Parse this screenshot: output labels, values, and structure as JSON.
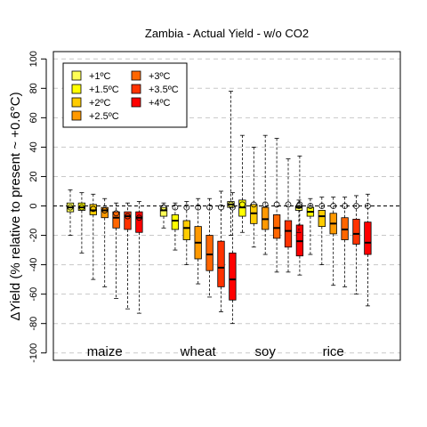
{
  "chart_data": {
    "type": "boxplot",
    "title": "Zambia - Actual Yield - w/o CO2",
    "ylabel": "ΔYield (% relative to present ~ +0.6°C)",
    "xlabel": "",
    "ylim": [
      -105,
      105
    ],
    "yticks": [
      -100,
      -80,
      -60,
      -40,
      -20,
      0,
      20,
      40,
      60,
      80,
      100
    ],
    "grid": true,
    "legend_position": "top-left",
    "series": [
      {
        "name": "+1ºC",
        "color": "#FFFF55"
      },
      {
        "name": "+1.5ºC",
        "color": "#FFFF00"
      },
      {
        "name": "+2ºC",
        "color": "#FFCC00"
      },
      {
        "name": "+2.5ºC",
        "color": "#FF9900"
      },
      {
        "name": "+3ºC",
        "color": "#FF6600"
      },
      {
        "name": "+3.5ºC",
        "color": "#FF3300"
      },
      {
        "name": "+4ºC",
        "color": "#FF0000"
      }
    ],
    "groups": [
      {
        "label": "maize",
        "boxes": [
          {
            "min": -20,
            "q1": -4,
            "median": -1,
            "q3": 2,
            "max": 11,
            "mean": -1
          },
          {
            "min": -32,
            "q1": -3,
            "median": -1,
            "q3": 2,
            "max": 9,
            "mean": -1
          },
          {
            "min": -50,
            "q1": -6,
            "median": -3,
            "q3": 1,
            "max": 8,
            "mean": -2
          },
          {
            "min": -55,
            "q1": -8,
            "median": -3,
            "q3": -1,
            "max": 5,
            "mean": -3
          },
          {
            "min": -63,
            "q1": -15,
            "median": -8,
            "q3": -4,
            "max": 2,
            "mean": -5
          },
          {
            "min": -70,
            "q1": -16,
            "median": -7,
            "q3": -4,
            "max": 2,
            "mean": -7
          },
          {
            "min": -73,
            "q1": -18,
            "median": -8,
            "q3": -4,
            "max": 3,
            "mean": -8
          }
        ]
      },
      {
        "label": "wheat",
        "boxes": [
          {
            "min": -15,
            "q1": -7,
            "median": -3,
            "q3": -1,
            "max": 2,
            "mean": -1
          },
          {
            "min": -30,
            "q1": -16,
            "median": -10,
            "q3": -6,
            "max": 2,
            "mean": -1
          },
          {
            "min": -40,
            "q1": -23,
            "median": -15,
            "q3": -10,
            "max": 3,
            "mean": -1
          },
          {
            "min": -53,
            "q1": -36,
            "median": -25,
            "q3": -14,
            "max": 5,
            "mean": -1
          },
          {
            "min": -62,
            "q1": -44,
            "median": -33,
            "q3": -20,
            "max": 5,
            "mean": -1
          },
          {
            "min": -72,
            "q1": -55,
            "median": -42,
            "q3": -24,
            "max": 10,
            "mean": -1
          },
          {
            "min": -80,
            "q1": -64,
            "median": -50,
            "q3": -32,
            "max": 9,
            "mean": -1
          }
        ]
      },
      {
        "label": "soy",
        "boxes": [
          {
            "min": -20,
            "q1": -1,
            "median": 1,
            "q3": 3,
            "max": 78,
            "mean": 1
          },
          {
            "min": -18,
            "q1": -7,
            "median": -1,
            "q3": 4,
            "max": 48,
            "mean": 1
          },
          {
            "min": -28,
            "q1": -12,
            "median": -5,
            "q3": 1,
            "max": 40,
            "mean": 1
          },
          {
            "min": -33,
            "q1": -16,
            "median": -9,
            "q3": -1,
            "max": 48,
            "mean": 1
          },
          {
            "min": -45,
            "q1": -22,
            "median": -15,
            "q3": -6,
            "max": 46,
            "mean": 1
          },
          {
            "min": -45,
            "q1": -28,
            "median": -17,
            "q3": -10,
            "max": 32,
            "mean": 1
          },
          {
            "min": -47,
            "q1": -34,
            "median": -24,
            "q3": -13,
            "max": 34,
            "mean": 1
          }
        ]
      },
      {
        "label": "rice",
        "boxes": [
          {
            "min": -18,
            "q1": -3,
            "median": -1,
            "q3": 0,
            "max": 4,
            "mean": 0
          },
          {
            "min": -33,
            "q1": -7,
            "median": -4,
            "q3": -1,
            "max": 5,
            "mean": 0
          },
          {
            "min": -40,
            "q1": -14,
            "median": -7,
            "q3": -3,
            "max": 6,
            "mean": 0
          },
          {
            "min": -54,
            "q1": -19,
            "median": -12,
            "q3": -5,
            "max": 6,
            "mean": 0
          },
          {
            "min": -55,
            "q1": -23,
            "median": -16,
            "q3": -8,
            "max": 6,
            "mean": 0
          },
          {
            "min": -60,
            "q1": -26,
            "median": -19,
            "q3": -9,
            "max": 7,
            "mean": 0
          },
          {
            "min": -68,
            "q1": -33,
            "median": -25,
            "q3": -11,
            "max": 8,
            "mean": 0
          }
        ]
      }
    ]
  }
}
